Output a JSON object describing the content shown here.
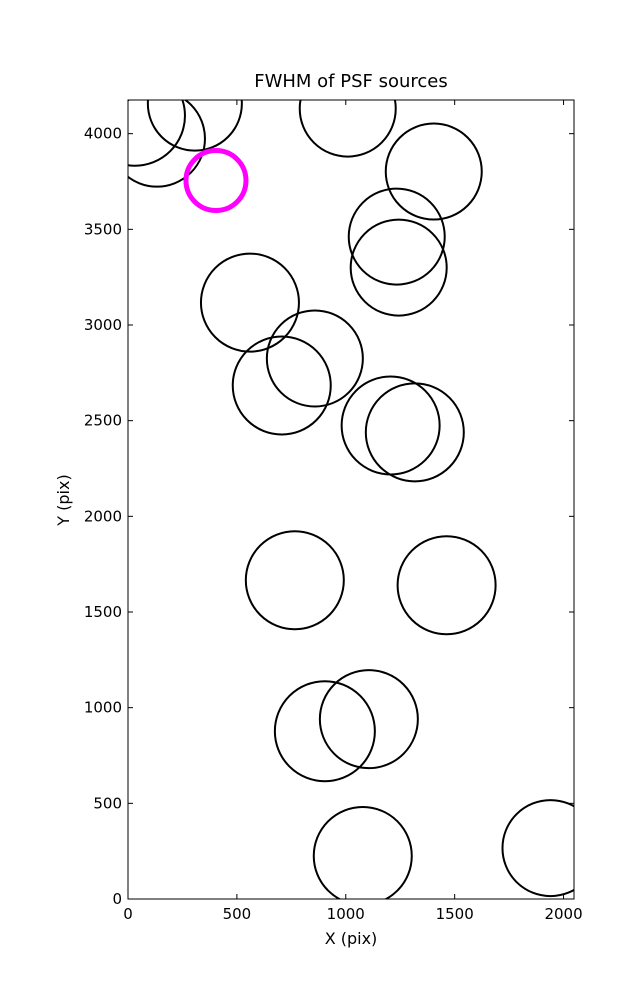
{
  "chart_data": {
    "type": "scatter",
    "title": "FWHM of PSF sources",
    "x_label": "X (pix)",
    "y_label": "Y (pix)",
    "xlim": [
      0,
      2048
    ],
    "ylim": [
      0,
      4176
    ],
    "xticks": [
      0,
      500,
      1000,
      1500,
      2000
    ],
    "yticks": [
      0,
      500,
      1000,
      1500,
      2000,
      2500,
      3000,
      3500,
      4000
    ],
    "series": [
      {
        "color": "#000000",
        "linewidth": 2,
        "x": [
          32,
          133,
          307,
          1009,
          1404,
          1234,
          1243,
          560,
          858,
          706,
          1206,
          1317,
          766,
          1463,
          904,
          1106,
          1078,
          1940
        ],
        "y": [
          4094,
          3974,
          4157,
          4131,
          3802,
          3462,
          3300,
          3117,
          2825,
          2684,
          2475,
          2439,
          1666,
          1640,
          877,
          940,
          225,
          266
        ],
        "sizes": [
          50,
          48,
          47,
          48,
          48,
          48,
          48,
          49,
          48,
          49,
          49,
          49,
          49,
          49,
          50,
          49,
          49,
          48
        ]
      },
      {
        "color": "#ff00ff",
        "linewidth": 5,
        "x": [
          404
        ],
        "y": [
          3755
        ],
        "sizes": [
          30
        ]
      }
    ]
  }
}
